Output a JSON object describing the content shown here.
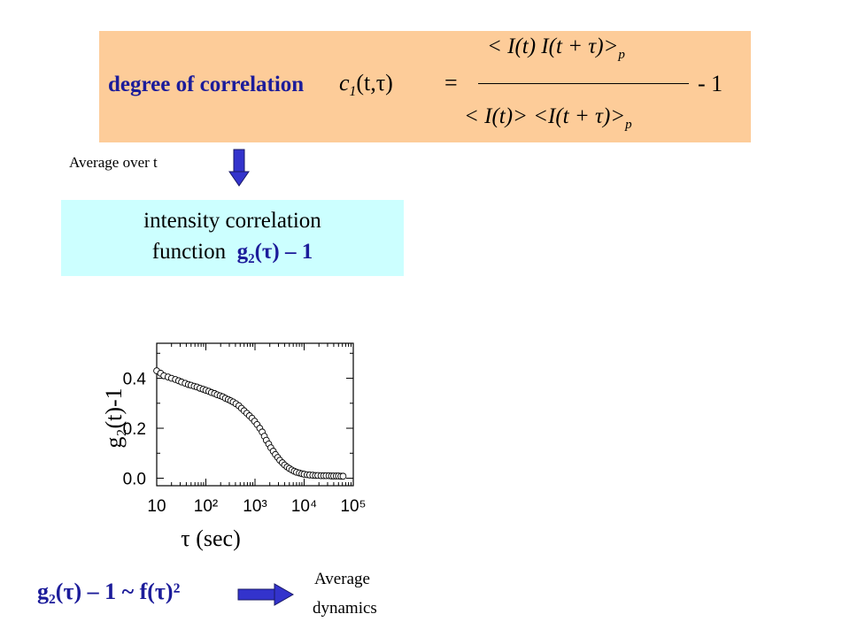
{
  "formula": {
    "label": "degree of correlation",
    "lhs_var": "c",
    "lhs_sub": "1",
    "lhs_args": "(t,τ)",
    "equals": "=",
    "numerator": "< I(t) I(t + τ)>",
    "denominator": "< I(t)> <I(t + τ)>",
    "subscript_p": "p",
    "minus_one": "- 1"
  },
  "average_over": "Average over t",
  "g2_box": {
    "line1": "intensity correlation",
    "line2_prefix": "function",
    "line2_math": "g₂(τ) – 1"
  },
  "colors": {
    "accent_blue": "#1c1c9a",
    "formula_bg": "#fdcc99",
    "g2_bg": "#ccffff",
    "arrow": "#3333cc"
  },
  "chart_data": {
    "type": "scatter",
    "title": "",
    "xlabel": "τ (sec)",
    "ylabel": "g₂(t)-1",
    "xscale": "log",
    "xlim": [
      10,
      100000
    ],
    "ylim": [
      -0.03,
      0.54
    ],
    "xtick_labels": [
      "10",
      "10²",
      "10³",
      "10⁴",
      "10⁵"
    ],
    "ytick_labels": [
      "0.0",
      "0.2",
      "0.4"
    ],
    "ytick_values": [
      0.0,
      0.2,
      0.4
    ],
    "marker": "open-circle",
    "grid": false,
    "x": [
      10,
      12,
      14,
      17,
      20,
      24,
      28,
      32,
      38,
      44,
      50,
      58,
      66,
      76,
      88,
      100,
      115,
      130,
      150,
      170,
      195,
      220,
      250,
      285,
      320,
      360,
      410,
      470,
      530,
      600,
      680,
      770,
      870,
      980,
      1100,
      1250,
      1400,
      1550,
      1700,
      1900,
      2100,
      2350,
      2600,
      2900,
      3200,
      3600,
      4000,
      4500,
      5000,
      5600,
      6300,
      7000,
      8000,
      9000,
      10000,
      11500,
      13000,
      15000,
      17000,
      19000,
      22000,
      25000,
      28000,
      32000,
      36000,
      40000,
      45000,
      50000,
      56000,
      62000
    ],
    "y": [
      0.43,
      0.42,
      0.41,
      0.405,
      0.4,
      0.395,
      0.39,
      0.385,
      0.38,
      0.375,
      0.372,
      0.368,
      0.365,
      0.36,
      0.356,
      0.352,
      0.348,
      0.343,
      0.339,
      0.334,
      0.33,
      0.326,
      0.32,
      0.315,
      0.31,
      0.305,
      0.298,
      0.29,
      0.28,
      0.27,
      0.26,
      0.25,
      0.24,
      0.228,
      0.215,
      0.2,
      0.185,
      0.168,
      0.152,
      0.137,
      0.122,
      0.108,
      0.095,
      0.083,
      0.072,
      0.062,
      0.053,
      0.045,
      0.039,
      0.033,
      0.028,
      0.024,
      0.021,
      0.018,
      0.016,
      0.014,
      0.013,
      0.012,
      0.011,
      0.011,
      0.01,
      0.01,
      0.01,
      0.01,
      0.009,
      0.009,
      0.009,
      0.009,
      0.008,
      0.008
    ]
  },
  "bottom": {
    "equation": "g₂(τ) – 1 ~ f(τ)²",
    "average_line1": "Average",
    "average_line2": "dynamics"
  }
}
